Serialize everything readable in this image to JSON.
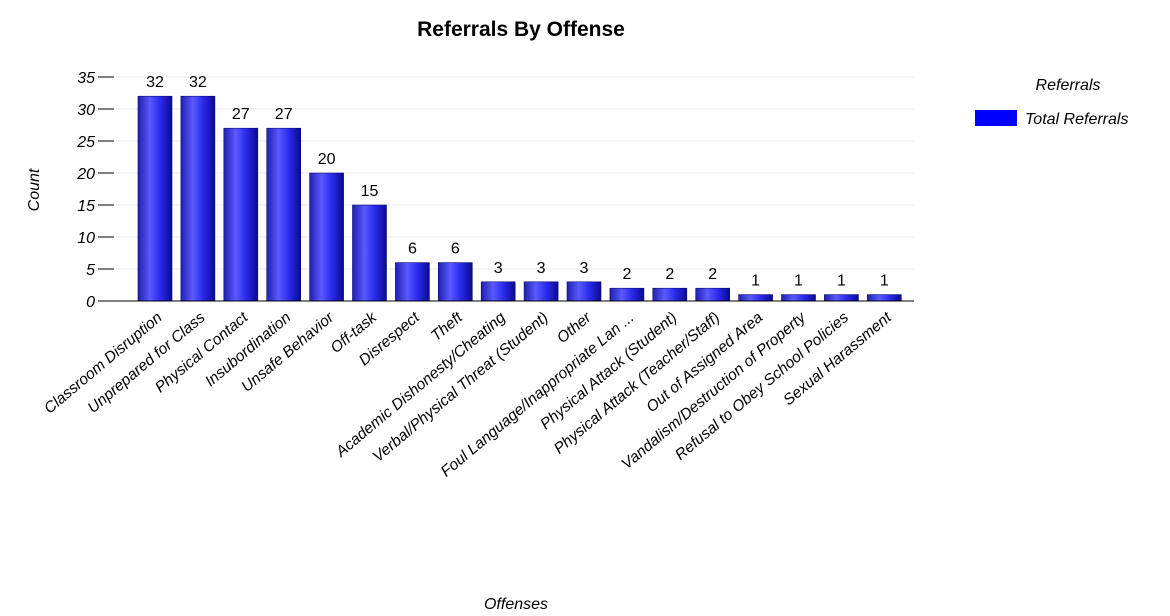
{
  "chart_data": {
    "type": "bar",
    "title": "Referrals By Offense",
    "xlabel": "Offenses",
    "ylabel": "Count",
    "ylim": [
      0,
      35
    ],
    "yticks": [
      0,
      5,
      10,
      15,
      20,
      25,
      30,
      35
    ],
    "grid": true,
    "legend": {
      "title": "Referrals",
      "placement": "top-right"
    },
    "categories": [
      "Classroom Disruption",
      "Unprepared for Class",
      "Physical Contact",
      "Insubordination",
      "Unsafe Behavior",
      "Off-task",
      "Disrespect",
      "Theft",
      "Academic Dishonesty/Cheating",
      "Verbal/Physical Threat (Student)",
      "Other",
      "Foul Language/Inappropriate Lan ...",
      "Physical Attack (Student)",
      "Physical Attack (Teacher/Staff)",
      "Out of Assigned Area",
      "Vandalism/Destruction of Property",
      "Refusal to Obey School Policies",
      "Sexual Harassment"
    ],
    "series": [
      {
        "name": "Total Referrals",
        "color": "#0000ff",
        "values": [
          32,
          32,
          27,
          27,
          20,
          15,
          6,
          6,
          3,
          3,
          3,
          2,
          2,
          2,
          1,
          1,
          1,
          1
        ]
      }
    ]
  }
}
